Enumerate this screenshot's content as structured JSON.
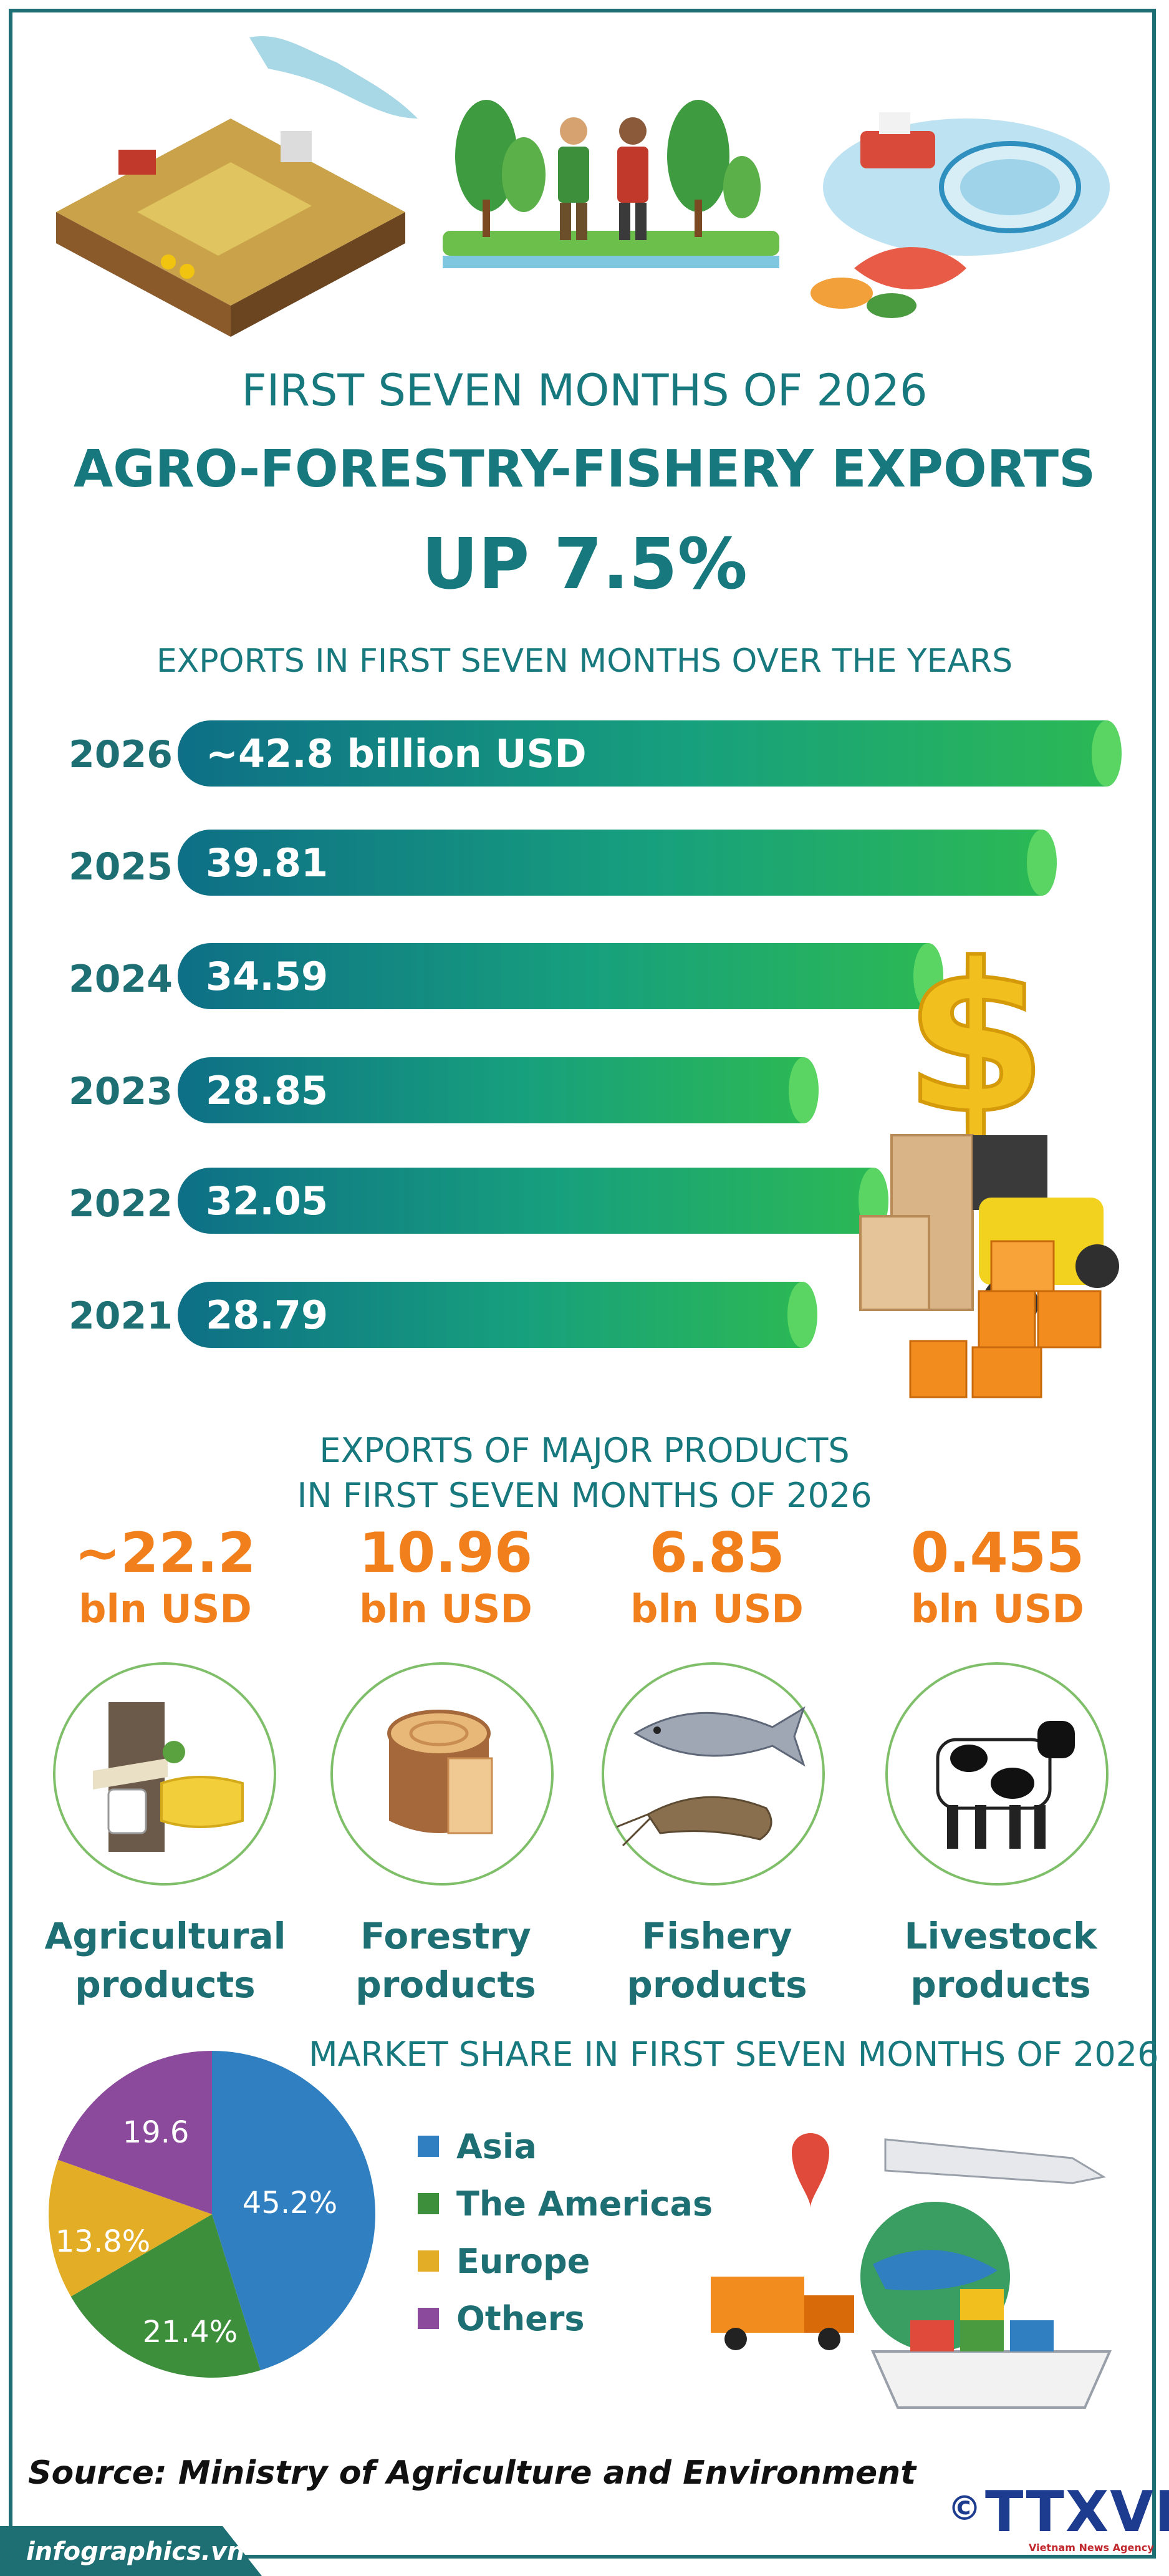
{
  "header": {
    "line1": "FIRST SEVEN MONTHS OF 2026",
    "line2": "AGRO-FORESTRY-FISHERY EXPORTS",
    "line3": "UP 7.5%"
  },
  "bars_section": {
    "title": "EXPORTS IN FIRST SEVEN MONTHS OVER THE YEARS",
    "items": [
      {
        "year": "2026",
        "label": "~42.8 billion USD",
        "value": 42.8
      },
      {
        "year": "2025",
        "label": "39.81",
        "value": 39.81
      },
      {
        "year": "2024",
        "label": "34.59",
        "value": 34.59
      },
      {
        "year": "2023",
        "label": "28.85",
        "value": 28.85
      },
      {
        "year": "2022",
        "label": "32.05",
        "value": 32.05
      },
      {
        "year": "2021",
        "label": "28.79",
        "value": 28.79
      }
    ]
  },
  "products_section": {
    "title_line1": "EXPORTS OF MAJOR PRODUCTS",
    "title_line2": "IN FIRST SEVEN MONTHS OF 2026",
    "items": [
      {
        "amount": "~22.2",
        "unit": "bln USD",
        "name_line1": "Agricultural",
        "name_line2": "products",
        "icon": "coconut-rubber-icon"
      },
      {
        "amount": "10.96",
        "unit": "bln USD",
        "name_line1": "Forestry",
        "name_line2": "products",
        "icon": "wood-stump-icon"
      },
      {
        "amount": "6.85",
        "unit": "bln USD",
        "name_line1": "Fishery",
        "name_line2": "products",
        "icon": "fish-shrimp-icon"
      },
      {
        "amount": "0.455",
        "unit": "bln USD",
        "name_line1": "Livestock",
        "name_line2": "products",
        "icon": "cow-icon"
      }
    ]
  },
  "market_section": {
    "title": "MARKET SHARE IN FIRST SEVEN MONTHS OF 2026",
    "slices": [
      {
        "name": "Asia",
        "label": "45.2%",
        "value": 45.2,
        "color": "#2f7fc1"
      },
      {
        "name": "The Americas",
        "label": "21.4%",
        "value": 21.4,
        "color": "#3e8f3c"
      },
      {
        "name": "Europe",
        "label": "13.8%",
        "value": 13.8,
        "color": "#e3ae25"
      },
      {
        "name": "Others",
        "label": "19.6",
        "value": 19.6,
        "color": "#8b4a9c"
      }
    ]
  },
  "chart_data": [
    {
      "type": "bar",
      "title": "EXPORTS IN FIRST SEVEN MONTHS OVER THE YEARS",
      "categories": [
        "2026",
        "2025",
        "2024",
        "2023",
        "2022",
        "2021"
      ],
      "values": [
        42.8,
        39.81,
        34.59,
        28.85,
        32.05,
        28.79
      ]
    },
    {
      "type": "pie",
      "title": "MARKET SHARE IN FIRST SEVEN MONTHS OF 2026",
      "categories": [
        "Asia",
        "The Americas",
        "Europe",
        "Others"
      ],
      "values": [
        45.2,
        21.4,
        13.8,
        19.6
      ]
    }
  ],
  "footer": {
    "source": "Source: Ministry of Agriculture and Environment",
    "site": "infographics.vn",
    "copyright": "©",
    "brand": "TTXVN",
    "brand_sub": "Vietnam News Agency"
  },
  "colors": {
    "teal": "#17797e",
    "orange": "#f07f1c",
    "navy": "#1d3c8f"
  }
}
